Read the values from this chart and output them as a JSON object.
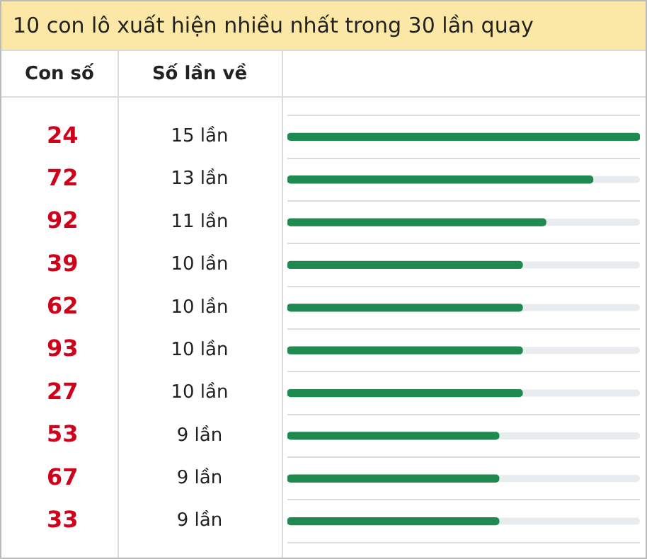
{
  "chart_data": {
    "type": "bar",
    "orientation": "horizontal",
    "title": "10 con lô xuất hiện nhiều nhất trong 30 lần quay",
    "ylabel": "Con số",
    "xlabel": "Số lần về",
    "categories": [
      "24",
      "72",
      "92",
      "39",
      "62",
      "93",
      "27",
      "53",
      "67",
      "33"
    ],
    "values": [
      15,
      13,
      11,
      10,
      10,
      10,
      10,
      9,
      9,
      9
    ],
    "value_labels": [
      "15 lần",
      "13 lần",
      "11 lần",
      "10 lần",
      "10 lần",
      "10 lần",
      "10 lần",
      "9 lần",
      "9 lần",
      "9 lần"
    ],
    "color": "#1e8a4f",
    "grid": "y",
    "legend": false
  }
}
